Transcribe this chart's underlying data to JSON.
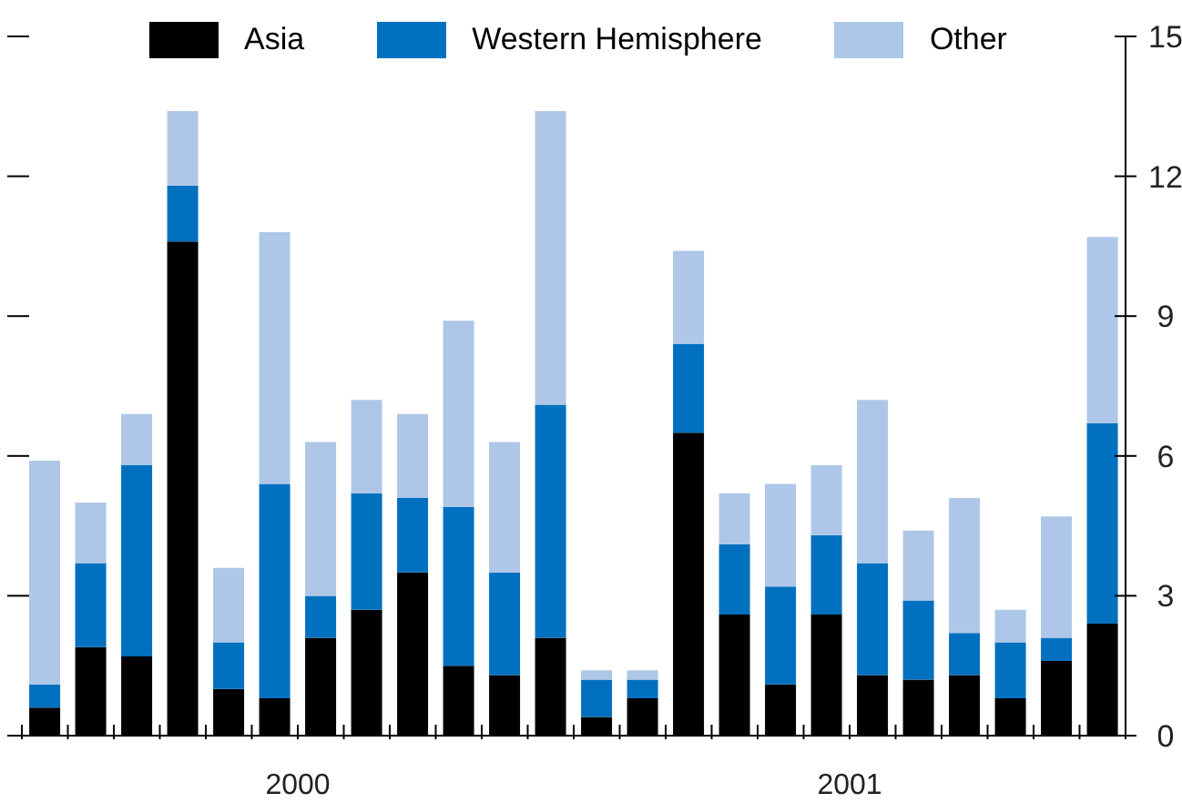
{
  "chart_data": {
    "type": "bar",
    "stacked": true,
    "categories": [
      null,
      null,
      null,
      null,
      null,
      null,
      null,
      null,
      null,
      null,
      null,
      null,
      null,
      null,
      null,
      null,
      null,
      null,
      null,
      null,
      null,
      null,
      null,
      null
    ],
    "annotations": [
      "2000",
      "2001"
    ],
    "series": [
      {
        "name": "Asia",
        "color": "#000000",
        "values": [
          0.6,
          1.9,
          1.7,
          10.6,
          1.0,
          0.8,
          2.1,
          2.7,
          3.5,
          1.5,
          1.3,
          2.1,
          0.4,
          0.8,
          6.5,
          2.6,
          1.1,
          2.6,
          1.3,
          1.2,
          1.3,
          0.8,
          1.6,
          2.4
        ]
      },
      {
        "name": "Western Hemisphere",
        "color": "#0070bf",
        "values": [
          0.5,
          1.8,
          4.1,
          1.2,
          1.0,
          4.6,
          0.9,
          2.5,
          1.6,
          3.4,
          2.2,
          5.0,
          0.8,
          0.4,
          1.9,
          1.5,
          2.1,
          1.7,
          2.4,
          1.7,
          0.9,
          1.2,
          0.5,
          4.3
        ]
      },
      {
        "name": "Other",
        "color": "#aec7e8",
        "values": [
          4.8,
          1.3,
          1.1,
          1.6,
          1.6,
          5.4,
          3.3,
          2.0,
          1.8,
          4.0,
          2.8,
          6.3,
          0.2,
          0.2,
          2.0,
          1.1,
          2.2,
          1.5,
          3.5,
          1.5,
          2.9,
          0.7,
          2.6,
          4.0
        ]
      }
    ],
    "ylim": [
      0,
      15
    ],
    "yticks": [
      0,
      3,
      6,
      9,
      12,
      15
    ],
    "legend": "top"
  }
}
